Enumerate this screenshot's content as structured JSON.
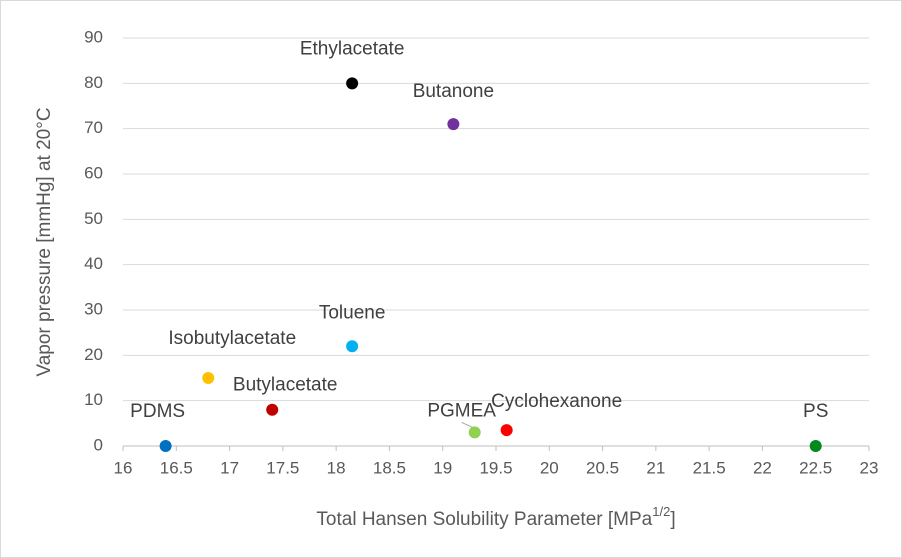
{
  "chart_data": {
    "type": "scatter",
    "xlabel": "Total Hansen Solubility Parameter [MPa",
    "xlabel_sup": "1/2",
    "xlabel_end": "]",
    "ylabel": "Vapor pressure [mmHg] at 20°C",
    "xlim": [
      16,
      23
    ],
    "xticks": [
      16,
      16.5,
      17,
      17.5,
      18,
      18.5,
      19,
      19.5,
      20,
      20.5,
      21,
      21.5,
      22,
      22.5,
      23
    ],
    "ylim": [
      0,
      90
    ],
    "yticks": [
      0,
      10,
      20,
      30,
      40,
      50,
      60,
      70,
      80,
      90
    ],
    "grid": true,
    "points": [
      {
        "name": "PDMS",
        "x": 16.4,
        "y": 0,
        "color": "#0070c0"
      },
      {
        "name": "Isobutylacetate",
        "x": 16.8,
        "y": 15,
        "color": "#ffc000"
      },
      {
        "name": "Butylacetate",
        "x": 17.4,
        "y": 8,
        "color": "#c00000"
      },
      {
        "name": "Toluene",
        "x": 18.15,
        "y": 22,
        "color": "#00b0f0"
      },
      {
        "name": "Ethylacetate",
        "x": 18.15,
        "y": 80,
        "color": "#000000"
      },
      {
        "name": "Butanone",
        "x": 19.1,
        "y": 71,
        "color": "#7030a0"
      },
      {
        "name": "PGMEA",
        "x": 19.3,
        "y": 3,
        "color": "#92d050"
      },
      {
        "name": "Cyclohexanone",
        "x": 19.6,
        "y": 3.5,
        "color": "#ff0000"
      },
      {
        "name": "PS",
        "x": 22.5,
        "y": 0,
        "color": "#008a1e"
      }
    ]
  }
}
